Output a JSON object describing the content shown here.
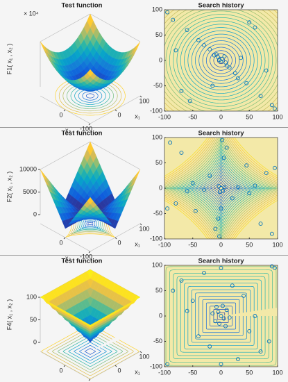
{
  "chart_data": [
    {
      "type": "surface",
      "title": "Test function",
      "zlabel": "F1( x₁ , x₂ )",
      "exponent_label": "× 10⁴",
      "xlabel": "x₁",
      "ylabel": "x₂",
      "xlim": [
        -100,
        100
      ],
      "ylim": [
        -100,
        100
      ],
      "xticks": [
        0,
        100
      ],
      "yticks": [
        -100,
        0
      ]
    },
    {
      "type": "scatter",
      "title": "Search history",
      "color": "#0072bd",
      "xlim": [
        -100,
        100
      ],
      "ylim": [
        -100,
        100
      ],
      "xticks": [
        -100,
        -50,
        0,
        50,
        100
      ],
      "yticks": [
        -100,
        -50,
        0,
        50,
        100
      ],
      "x": [
        2,
        -5,
        8,
        -12,
        15,
        0,
        -3,
        6,
        -20,
        25,
        -40,
        45,
        -60,
        70,
        -85,
        90,
        -95,
        95,
        -70,
        60,
        30,
        -30,
        10,
        -8,
        50,
        -55,
        80,
        -80,
        35,
        -15
      ],
      "y": [
        3,
        6,
        -4,
        10,
        -14,
        -2,
        1,
        8,
        22,
        -25,
        40,
        -45,
        60,
        -70,
        80,
        -88,
        95,
        -95,
        -60,
        65,
        -35,
        30,
        -10,
        12,
        75,
        -80,
        -20,
        20,
        5,
        -50
      ]
    },
    {
      "type": "surface",
      "title": "Test function",
      "zlabel": "F2( x₁ , x₂ )",
      "xlabel": "x₁",
      "ylabel": "x₂",
      "xlim": [
        -100,
        100
      ],
      "ylim": [
        -100,
        100
      ],
      "xticks": [
        0,
        100
      ],
      "yticks": [
        -100,
        0
      ],
      "zlim": [
        0,
        10000
      ],
      "zticks": [
        0,
        5000,
        10000
      ]
    },
    {
      "type": "scatter",
      "title": "Search history",
      "color": "#0072bd",
      "xlim": [
        -100,
        100
      ],
      "ylim": [
        -100,
        100
      ],
      "xticks": [
        -100,
        -50,
        0,
        50,
        100
      ],
      "yticks": [
        -100,
        -50,
        0,
        50,
        100
      ],
      "x": [
        0,
        3,
        -4,
        6,
        -2,
        30,
        -30,
        60,
        -60,
        90,
        -90,
        5,
        -5,
        2,
        -3,
        45,
        -45,
        70,
        -70,
        20,
        -20,
        80,
        -80,
        10,
        -10,
        50,
        -50,
        95,
        -95,
        0
      ],
      "y": [
        0,
        -5,
        4,
        2,
        -7,
        2,
        -3,
        5,
        -6,
        -90,
        90,
        60,
        -60,
        95,
        -95,
        45,
        -45,
        -70,
        70,
        -20,
        25,
        30,
        -30,
        80,
        -80,
        -10,
        10,
        40,
        -40,
        -40
      ]
    },
    {
      "type": "surface",
      "title": "Test function",
      "zlabel": "F4( x₁ , x₂ )",
      "xlabel": "x₁",
      "ylabel": "x₂",
      "xlim": [
        -100,
        100
      ],
      "ylim": [
        -100,
        100
      ],
      "xticks": [
        0,
        100
      ],
      "yticks": [
        -100,
        0
      ],
      "zlim": [
        0,
        100
      ],
      "zticks": [
        0,
        50,
        100
      ]
    },
    {
      "type": "scatter",
      "title": "Search history",
      "color": "#0072bd",
      "xlim": [
        -100,
        100
      ],
      "ylim": [
        -100,
        100
      ],
      "xticks": [
        -100,
        -50,
        0,
        50,
        100
      ],
      "yticks": [
        -100,
        -50,
        0,
        50,
        100
      ],
      "x": [
        0,
        5,
        -5,
        10,
        -10,
        3,
        -3,
        15,
        -15,
        8,
        -8,
        40,
        -40,
        70,
        -70,
        95,
        -95,
        20,
        -20,
        60,
        -60,
        85,
        -85,
        30,
        -30,
        50,
        -50,
        0,
        0,
        90
      ],
      "y": [
        0,
        -5,
        8,
        12,
        -10,
        20,
        -15,
        -3,
        5,
        -20,
        18,
        40,
        -40,
        -70,
        70,
        95,
        -95,
        60,
        -60,
        0,
        10,
        -50,
        50,
        -85,
        85,
        -30,
        30,
        95,
        -95,
        98
      ]
    }
  ]
}
